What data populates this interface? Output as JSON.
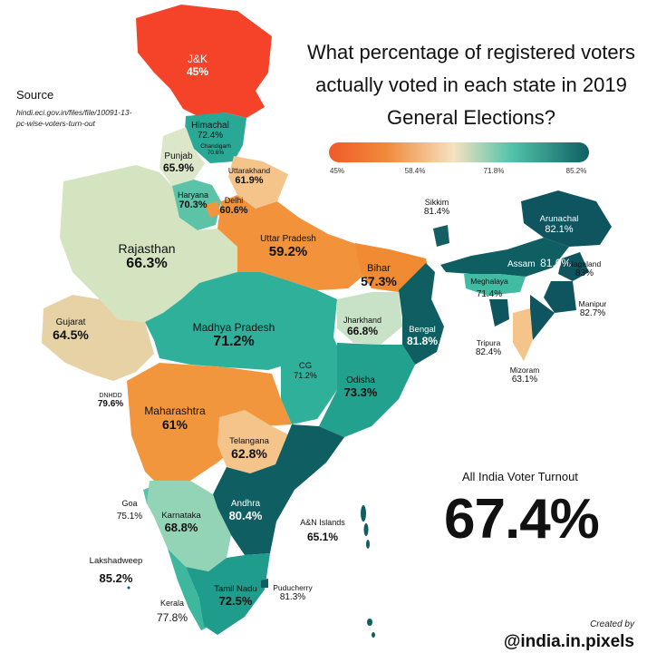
{
  "title": "What percentage of registered voters actually voted in each state in 2019 General Elections?",
  "legend": {
    "ticks": [
      "45%",
      "58.4%",
      "71.8%",
      "85.2%"
    ],
    "colors": [
      "#f15a2a",
      "#f08a3a",
      "#f5e2c0",
      "#52c4aa",
      "#0f5f62"
    ]
  },
  "source": {
    "heading": "Source",
    "text": "hindi.eci.gov.in/files/file/10091-13-pc-wise-voters-turn-out"
  },
  "all_india": {
    "label": "All India Voter Turnout",
    "value": "67.4%"
  },
  "credit": {
    "created_by": "Created by",
    "handle": "@india.in.pixels"
  },
  "states": [
    {
      "name": "J&K",
      "value": "45%"
    },
    {
      "name": "Himachal",
      "value": "72.4%"
    },
    {
      "name": "Chandigarh",
      "value": "70.6%"
    },
    {
      "name": "Punjab",
      "value": "65.9%"
    },
    {
      "name": "Uttarakhand",
      "value": "61.9%"
    },
    {
      "name": "Haryana",
      "value": "70.3%"
    },
    {
      "name": "Delhi",
      "value": "60.6%"
    },
    {
      "name": "Rajasthan",
      "value": "66.3%"
    },
    {
      "name": "Uttar Pradesh",
      "value": "59.2%"
    },
    {
      "name": "Bihar",
      "value": "57.3%"
    },
    {
      "name": "Sikkim",
      "value": "81.4%"
    },
    {
      "name": "Arunachal",
      "value": "82.1%"
    },
    {
      "name": "Assam",
      "value": "81.6%"
    },
    {
      "name": "Nagaland",
      "value": "83%"
    },
    {
      "name": "Meghalaya",
      "value": "71.4%"
    },
    {
      "name": "Manipur",
      "value": "82.7%"
    },
    {
      "name": "Tripura",
      "value": "82.4%"
    },
    {
      "name": "Mizoram",
      "value": "63.1%"
    },
    {
      "name": "Gujarat",
      "value": "64.5%"
    },
    {
      "name": "Madhya Pradesh",
      "value": "71.2%"
    },
    {
      "name": "Jharkhand",
      "value": "66.8%"
    },
    {
      "name": "Bengal",
      "value": "81.8%"
    },
    {
      "name": "DNHDD",
      "value": "79.6%"
    },
    {
      "name": "CG",
      "value": "71.2%"
    },
    {
      "name": "Odisha",
      "value": "73.3%"
    },
    {
      "name": "Maharashtra",
      "value": "61%"
    },
    {
      "name": "Telangana",
      "value": "62.8%"
    },
    {
      "name": "Goa",
      "value": "75.1%"
    },
    {
      "name": "Karnataka",
      "value": "68.8%"
    },
    {
      "name": "Andhra",
      "value": "80.4%"
    },
    {
      "name": "A&N Islands",
      "value": "65.1%"
    },
    {
      "name": "Lakshadweep",
      "value": "85.2%"
    },
    {
      "name": "Tamil Nadu",
      "value": "72.5%"
    },
    {
      "name": "Puducherry",
      "value": "81.3%"
    },
    {
      "name": "Kerala",
      "value": "77.8%"
    }
  ]
}
